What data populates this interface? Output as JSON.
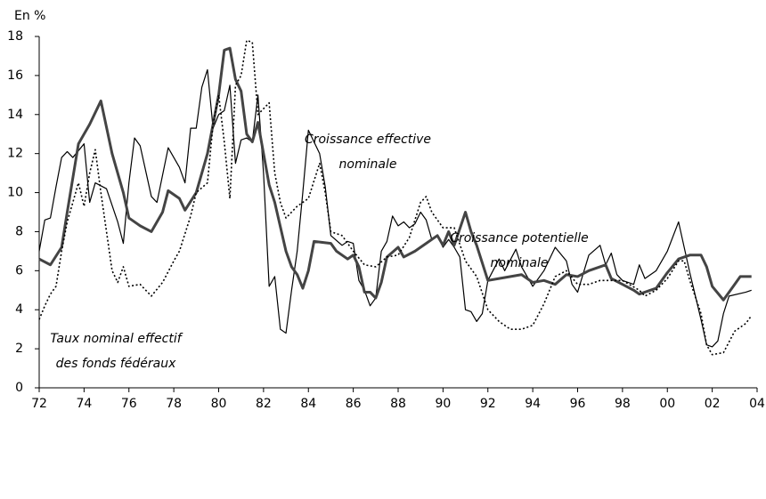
{
  "chart_data": {
    "type": "line",
    "y_unit": "En %",
    "xlim": [
      1972,
      2004
    ],
    "xticks": [
      {
        "value": 1972,
        "label": "72"
      },
      {
        "value": 1974,
        "label": "74"
      },
      {
        "value": 1976,
        "label": "76"
      },
      {
        "value": 1978,
        "label": "78"
      },
      {
        "value": 1980,
        "label": "80"
      },
      {
        "value": 1982,
        "label": "82"
      },
      {
        "value": 1984,
        "label": "84"
      },
      {
        "value": 1986,
        "label": "86"
      },
      {
        "value": 1988,
        "label": "88"
      },
      {
        "value": 1990,
        "label": "90"
      },
      {
        "value": 1992,
        "label": "92"
      },
      {
        "value": 1994,
        "label": "94"
      },
      {
        "value": 1996,
        "label": "96"
      },
      {
        "value": 1998,
        "label": "98"
      },
      {
        "value": 2000,
        "label": "00"
      },
      {
        "value": 2002,
        "label": "02"
      },
      {
        "value": 2004,
        "label": "04"
      }
    ],
    "ylim": [
      0,
      18
    ],
    "yticks": [
      0,
      2,
      4,
      6,
      8,
      10,
      12,
      14,
      16,
      18
    ],
    "grid": false,
    "annotations": [
      {
        "lines": [
          "Croissance effective",
          "nominale"
        ]
      },
      {
        "lines": [
          "Croissance potentielle",
          "nominale"
        ]
      },
      {
        "lines": [
          "Taux nominal effectif",
          "des fonds fédéraux"
        ]
      }
    ],
    "series": [
      {
        "name": "Croissance effective nominale",
        "color": "#000000",
        "linewidth": 1.2,
        "dash": "solid",
        "x": [
          1972,
          1972.25,
          1972.5,
          1972.75,
          1973,
          1973.25,
          1973.5,
          1974,
          1974.25,
          1974.5,
          1975,
          1975.5,
          1975.75,
          1976,
          1976.25,
          1976.5,
          1977,
          1977.25,
          1977.75,
          1978.25,
          1978.5,
          1978.75,
          1979,
          1979.25,
          1979.5,
          1979.75,
          1980,
          1980.25,
          1980.5,
          1980.75,
          1981,
          1981.25,
          1981.5,
          1981.75,
          1982,
          1982.25,
          1982.5,
          1982.75,
          1983,
          1983.25,
          1983.5,
          1983.75,
          1984,
          1984.5,
          1984.75,
          1985,
          1985.5,
          1985.75,
          1986,
          1986.25,
          1986.5,
          1986.75,
          1987,
          1987.25,
          1987.5,
          1987.75,
          1988,
          1988.25,
          1988.5,
          1988.75,
          1989,
          1989.25,
          1989.5,
          1989.75,
          1990,
          1990.25,
          1990.5,
          1990.75,
          1991,
          1991.25,
          1991.5,
          1991.75,
          1992,
          1992.5,
          1992.75,
          1993.25,
          1993.5,
          1994,
          1994.5,
          1995,
          1995.5,
          1995.75,
          1996,
          1996.5,
          1997,
          1997.25,
          1997.5,
          1997.75,
          1998,
          1998.5,
          1998.75,
          1999,
          1999.5,
          2000,
          2000.5,
          2000.75,
          2001,
          2001.5,
          2001.75,
          2002,
          2002.25,
          2002.5,
          2002.75,
          2003.5,
          2003.75
        ],
        "values": [
          7,
          8.6,
          8.7,
          10.3,
          11.8,
          12.1,
          11.8,
          12.5,
          9.5,
          10.5,
          10.2,
          8.5,
          7.4,
          10.5,
          12.8,
          12.4,
          9.8,
          9.5,
          12.3,
          11.3,
          10.5,
          13.3,
          13.3,
          15.4,
          16.3,
          13.3,
          14,
          14.2,
          15.5,
          11.5,
          12.7,
          12.8,
          12.6,
          15,
          11,
          5.2,
          5.7,
          3,
          2.8,
          5,
          7,
          10,
          13.2,
          12,
          10.3,
          7.8,
          7.3,
          7.5,
          7.4,
          5.5,
          5,
          4.2,
          4.6,
          7,
          7.5,
          8.8,
          8.3,
          8.5,
          8.2,
          8.4,
          9,
          8.6,
          7.6,
          7.8,
          7.2,
          7.6,
          7.2,
          6.7,
          4,
          3.9,
          3.4,
          3.8,
          5.5,
          6.6,
          6,
          7.1,
          6.2,
          5.2,
          6,
          7.2,
          6.5,
          5.3,
          4.9,
          6.8,
          7.3,
          6.3,
          6.9,
          5.8,
          5.5,
          5.3,
          6.3,
          5.6,
          6,
          7,
          8.5,
          7.2,
          5.9,
          3.5,
          2.2,
          2.1,
          2.4,
          3.8,
          4.7,
          4.9,
          5
        ]
      },
      {
        "name": "Croissance potentielle nominale",
        "color": "#444444",
        "linewidth": 3,
        "dash": "solid",
        "x": [
          1972,
          1972.5,
          1973,
          1973.25,
          1973.75,
          1974.25,
          1974.75,
          1975.25,
          1975.75,
          1976,
          1976.5,
          1977,
          1977.5,
          1977.75,
          1978.25,
          1978.5,
          1979,
          1979.5,
          1980,
          1980.25,
          1980.5,
          1980.75,
          1981,
          1981.25,
          1981.5,
          1981.75,
          1982,
          1982.25,
          1982.5,
          1983,
          1983.25,
          1983.5,
          1983.75,
          1984,
          1984.25,
          1985,
          1985.25,
          1985.75,
          1986,
          1986.25,
          1986.5,
          1986.75,
          1987,
          1987.25,
          1987.5,
          1988,
          1988.25,
          1988.75,
          1989.25,
          1989.75,
          1990,
          1990.25,
          1990.5,
          1991,
          1991.25,
          1991.5,
          1992,
          1992.5,
          1993.5,
          1994,
          1994.5,
          1995,
          1995.5,
          1996,
          1996.5,
          1997,
          1997.25,
          1997.5,
          1998,
          1998.5,
          1998.75,
          1999,
          1999.5,
          2000,
          2000.5,
          2001,
          2001.5,
          2001.75,
          2002,
          2002.5,
          2003,
          2003.25,
          2003.75
        ],
        "values": [
          6.6,
          6.3,
          7.2,
          9,
          12.5,
          13.5,
          14.7,
          12,
          10,
          8.7,
          8.3,
          8,
          9,
          10.1,
          9.7,
          9.1,
          10,
          12,
          15,
          17.3,
          17.4,
          15.8,
          15.2,
          13,
          12.6,
          13.6,
          12,
          10.4,
          9.5,
          7,
          6.2,
          5.8,
          5.1,
          6,
          7.5,
          7.4,
          7,
          6.6,
          6.8,
          6.2,
          4.9,
          4.9,
          4.6,
          5.4,
          6.7,
          7.2,
          6.7,
          7,
          7.4,
          7.8,
          7.3,
          8,
          7.3,
          9,
          8,
          7.3,
          5.5,
          5.6,
          5.8,
          5.4,
          5.5,
          5.3,
          5.8,
          5.7,
          6,
          6.2,
          6.3,
          5.6,
          5.3,
          5,
          4.8,
          4.9,
          5.1,
          5.9,
          6.6,
          6.8,
          6.8,
          6.2,
          5.2,
          4.5,
          5.3,
          5.7,
          5.7
        ]
      },
      {
        "name": "Taux nominal effectif des fonds fédéraux",
        "color": "#000000",
        "linewidth": 1.6,
        "dash": "dotted",
        "x": [
          1972,
          1972.25,
          1972.5,
          1972.75,
          1973,
          1973.25,
          1973.75,
          1974,
          1974.25,
          1974.5,
          1974.75,
          1975,
          1975.25,
          1975.5,
          1975.75,
          1976,
          1976.5,
          1976.75,
          1977,
          1977.5,
          1978,
          1978.25,
          1978.75,
          1979,
          1979.5,
          1979.75,
          1980,
          1980.25,
          1980.5,
          1980.75,
          1981,
          1981.25,
          1981.5,
          1981.75,
          1982,
          1982.25,
          1982.5,
          1982.75,
          1983,
          1983.5,
          1984,
          1984.5,
          1984.75,
          1985,
          1985.5,
          1986,
          1986.5,
          1987,
          1987.5,
          1988,
          1988.5,
          1989,
          1989.25,
          1989.5,
          1990,
          1990.5,
          1991,
          1991.5,
          1992,
          1992.5,
          1993,
          1993.5,
          1994,
          1994.5,
          1995,
          1995.5,
          1996,
          1996.5,
          1997,
          1997.5,
          1998,
          1998.75,
          1999,
          1999.5,
          2000,
          2000.5,
          2000.75,
          2001,
          2001.5,
          2001.75,
          2002,
          2002.5,
          2003,
          2003.5,
          2003.75
        ],
        "values": [
          3.5,
          4.2,
          4.8,
          5.2,
          7,
          8.5,
          10.5,
          9.3,
          11,
          12.2,
          10,
          8,
          6,
          5.4,
          6.2,
          5.2,
          5.3,
          5,
          4.7,
          5.4,
          6.5,
          7,
          8.8,
          10,
          10.5,
          13.5,
          15,
          12.6,
          9.7,
          15.5,
          16,
          17.8,
          17.7,
          14,
          14.3,
          14.6,
          11,
          9.5,
          8.7,
          9.3,
          9.7,
          11.5,
          10,
          8,
          7.8,
          7,
          6.3,
          6.2,
          6.7,
          6.8,
          7.7,
          9.5,
          9.8,
          9,
          8.2,
          8.2,
          6.5,
          5.7,
          4,
          3.4,
          3,
          3,
          3.2,
          4.3,
          5.7,
          6,
          5.3,
          5.3,
          5.5,
          5.5,
          5.5,
          5,
          4.7,
          5,
          5.6,
          6.5,
          6.5,
          5.5,
          3.8,
          2.2,
          1.7,
          1.8,
          2.9,
          3.3,
          3.7
        ]
      }
    ]
  }
}
